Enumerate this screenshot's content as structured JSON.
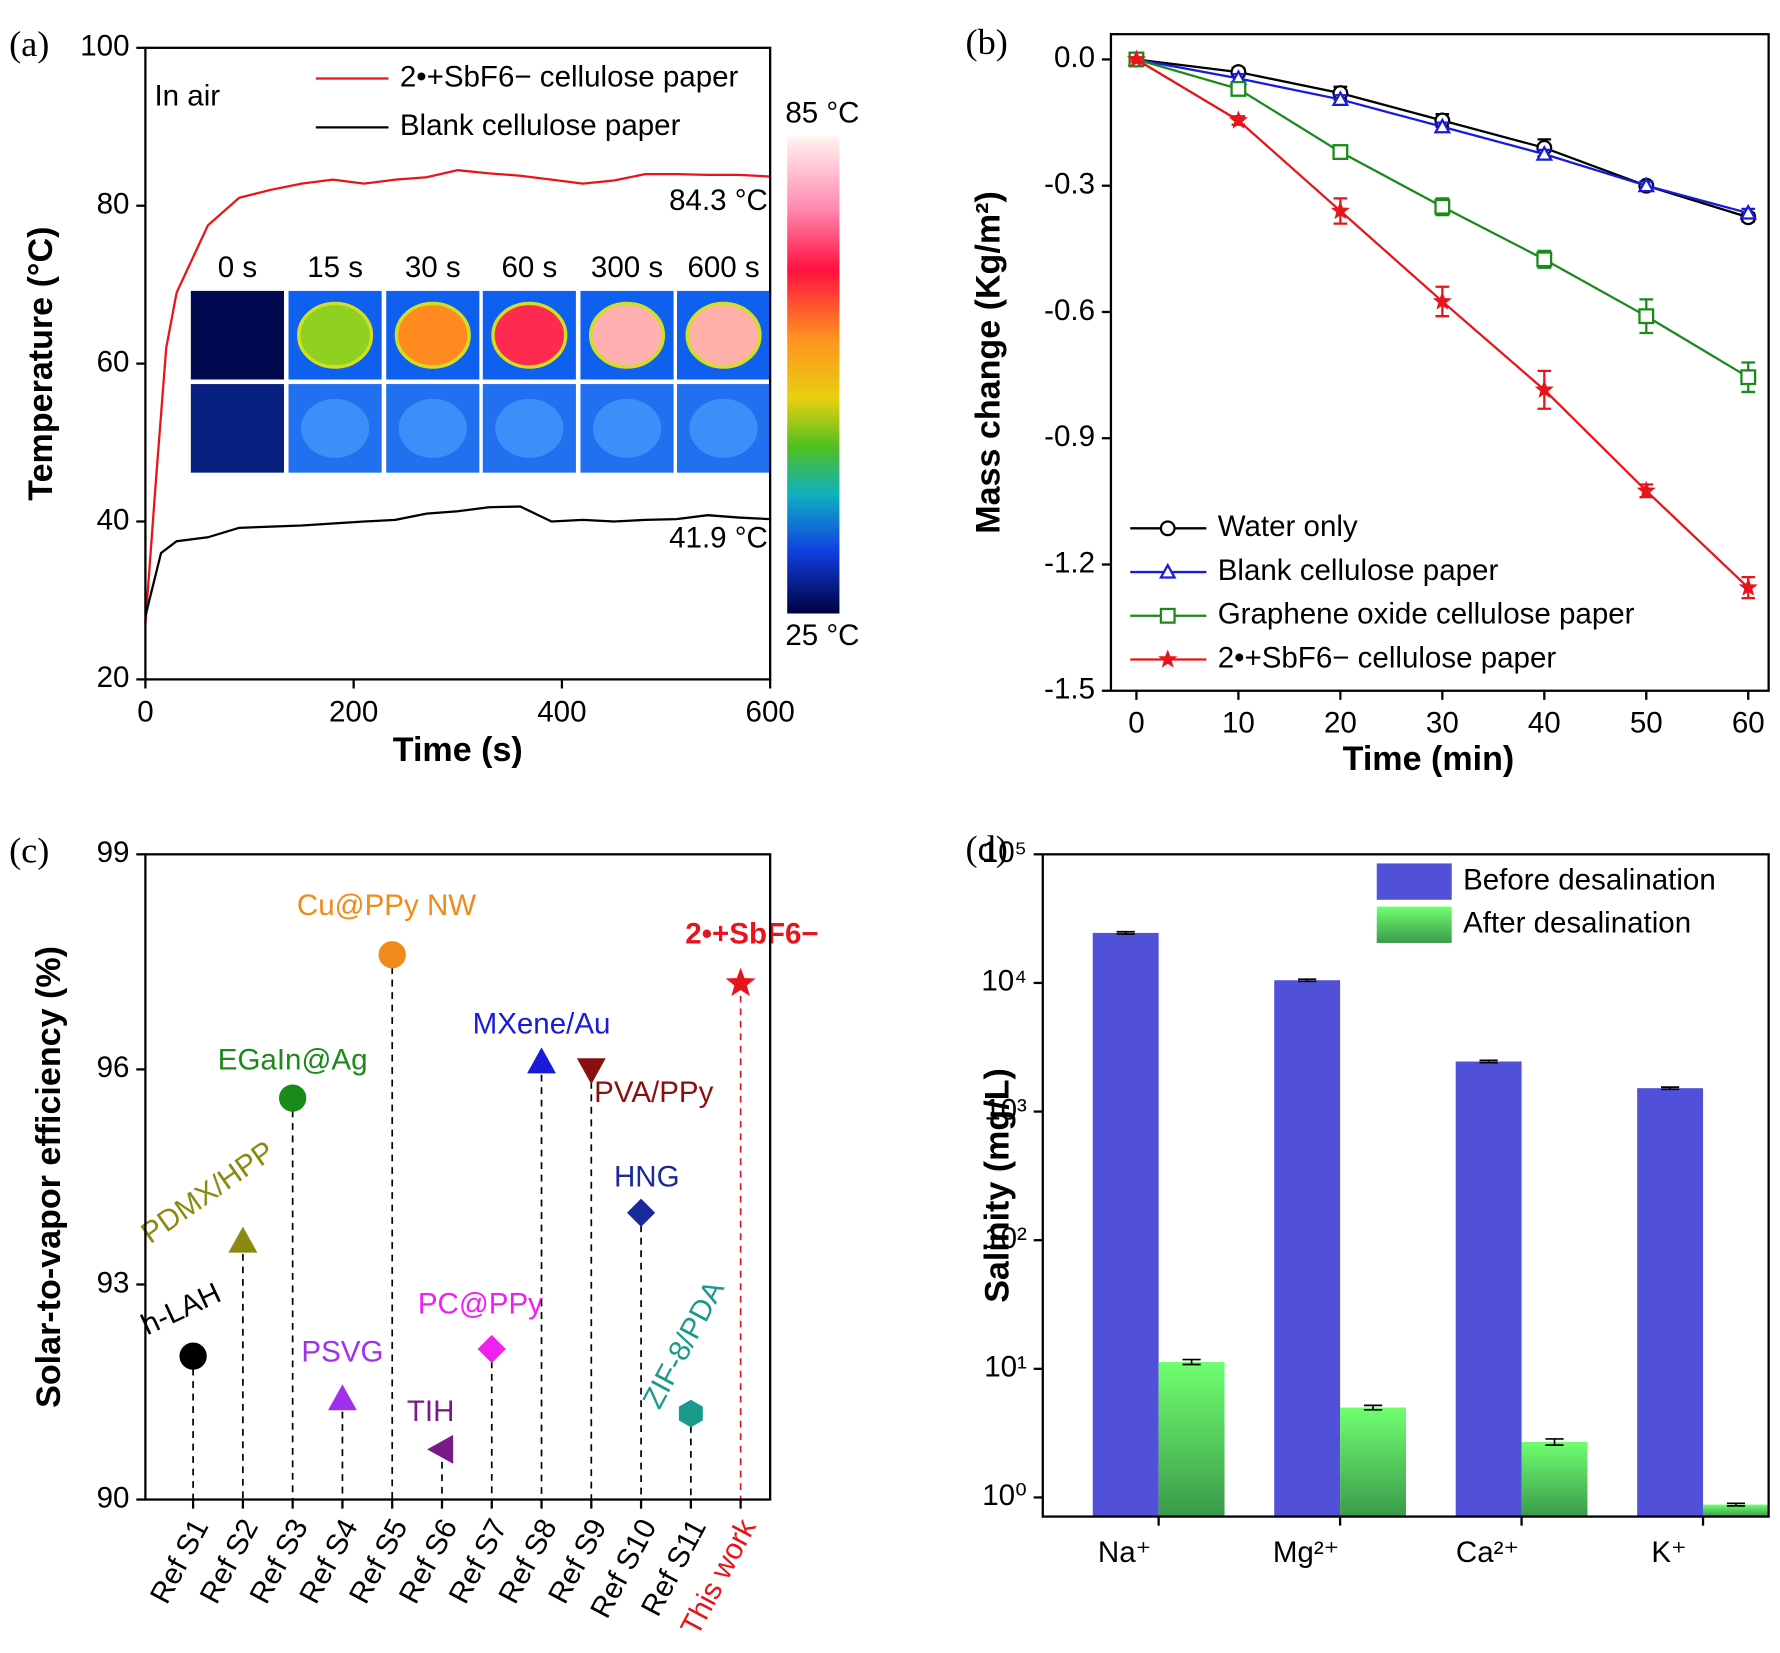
{
  "chart_data": [
    {
      "type": "line",
      "panel_label": "(a)",
      "x_label": "Time (s)",
      "y_label": "Temperature (°C)",
      "xlim": [
        0,
        600
      ],
      "ylim": [
        20,
        100
      ],
      "xticks": [
        0,
        200,
        400,
        600
      ],
      "yticks": [
        20,
        40,
        60,
        80,
        100
      ],
      "legend": "upper right",
      "series": [
        {
          "name": "2•+SbF6− cellulose paper",
          "color": "#e8141c",
          "x": [
            0,
            10,
            20,
            30,
            60,
            90,
            120,
            150,
            180,
            210,
            240,
            270,
            300,
            330,
            360,
            390,
            420,
            450,
            480,
            510,
            540,
            570,
            600
          ],
          "values": [
            27,
            45,
            62,
            69,
            77.5,
            81,
            82,
            82.8,
            83.3,
            82.8,
            83.3,
            83.6,
            84.5,
            84.1,
            83.8,
            83.3,
            82.8,
            83.2,
            84,
            84,
            83.9,
            83.9,
            83.7
          ]
        },
        {
          "name": "Blank cellulose paper",
          "color": "#000000",
          "x": [
            0,
            15,
            30,
            60,
            90,
            150,
            210,
            240,
            270,
            300,
            330,
            360,
            390,
            420,
            450,
            480,
            510,
            540,
            570,
            600
          ],
          "values": [
            28,
            36,
            37.5,
            38,
            39.2,
            39.5,
            40,
            40.2,
            41,
            41.3,
            41.8,
            41.9,
            40,
            40.2,
            40,
            40.2,
            40.3,
            40.8,
            40.5,
            40.3
          ]
        }
      ],
      "annotations": [
        "In air",
        "84.3 °C",
        "41.9 °C"
      ],
      "inset_labels": [
        "0 s",
        "15 s",
        "30 s",
        "60 s",
        "300 s",
        "600 s"
      ],
      "colorbar_labels": [
        "85 °C",
        "25 °C"
      ]
    },
    {
      "type": "line",
      "panel_label": "(b)",
      "x_label": "Time (min)",
      "y_label": "Mass change (Kg/m²)",
      "xlim": [
        -2.5,
        62
      ],
      "ylim": [
        -1.5,
        0.06
      ],
      "xticks": [
        0,
        10,
        20,
        30,
        40,
        50,
        60
      ],
      "yticks": [
        {
          "value": 0,
          "label": "0.0"
        },
        -0.3,
        -0.6,
        -0.9,
        -1.2,
        -1.5
      ],
      "legend": "lower left",
      "x": [
        0,
        10,
        20,
        30,
        40,
        50,
        60
      ],
      "series": [
        {
          "name": "Water only",
          "color": "#000000",
          "marker": "circle",
          "values": [
            0,
            -0.03,
            -0.08,
            -0.145,
            -0.21,
            -0.3,
            -0.375
          ],
          "errors": [
            0.01,
            0.01,
            0.015,
            0.015,
            0.02,
            0.01,
            0.01
          ]
        },
        {
          "name": "Blank cellulose paper",
          "color": "#1a1adb",
          "marker": "triangle",
          "values": [
            0,
            -0.045,
            -0.095,
            -0.16,
            -0.225,
            -0.3,
            -0.365
          ],
          "errors": [
            0.005,
            0.01,
            0.01,
            0.01,
            0.01,
            0.01,
            0.01
          ]
        },
        {
          "name": "Graphene oxide cellulose paper",
          "color": "#1a8a1a",
          "marker": "square",
          "values": [
            0,
            -0.07,
            -0.22,
            -0.35,
            -0.475,
            -0.61,
            -0.755
          ],
          "errors": [
            0.005,
            0.01,
            0.015,
            0.02,
            0.02,
            0.04,
            0.035
          ]
        },
        {
          "name": "2•+SbF6− cellulose paper",
          "color": "#e8141c",
          "marker": "star",
          "values": [
            0,
            -0.145,
            -0.36,
            -0.575,
            -0.785,
            -1.025,
            -1.255
          ],
          "errors": [
            0.005,
            0.01,
            0.03,
            0.035,
            0.045,
            0.015,
            0.025
          ]
        }
      ]
    },
    {
      "type": "scatter",
      "panel_label": "(c)",
      "y_label": "Solar-to-vapor efficiency (%)",
      "ylim": [
        90,
        99
      ],
      "yticks": [
        90,
        93,
        96,
        99
      ],
      "categories": [
        "Ref S1",
        "Ref S2",
        "Ref S3",
        "Ref S4",
        "Ref S5",
        "Ref S6",
        "Ref S7",
        "Ref S8",
        "Ref S9",
        "Ref S10",
        "Ref S11",
        "This work"
      ],
      "values": [
        92.0,
        93.6,
        95.6,
        91.4,
        97.6,
        90.7,
        92.1,
        96.1,
        96.0,
        94.0,
        91.2,
        97.2
      ],
      "point_labels": [
        "h-LAH",
        "PDMX/HPP",
        "EGaIn@Ag",
        "PSVG",
        "Cu@PPy NW",
        "TIH",
        "PC@PPy",
        "MXene/Au",
        "PVA/PPy",
        "HNG",
        "ZIF-8/PDA",
        "2•+SbF6−"
      ],
      "colors": [
        "#000000",
        "#8a8a10",
        "#1a8a1a",
        "#a030f0",
        "#f08a18",
        "#7a1a8a",
        "#f020f0",
        "#1a1adb",
        "#8a1010",
        "#1a2a9a",
        "#1a9a8a",
        "#e8141c"
      ],
      "markers": [
        "circle",
        "triangle",
        "circle",
        "triangle",
        "circle",
        "triangle-left",
        "diamond",
        "triangle",
        "triangle-down",
        "diamond",
        "hexagon",
        "star"
      ],
      "line_colors": [
        "#000000",
        "#000000",
        "#000000",
        "#000000",
        "#000000",
        "#000000",
        "#000000",
        "#000000",
        "#000000",
        "#000000",
        "#000000",
        "#e8141c"
      ]
    },
    {
      "type": "bar",
      "panel_label": "(d)",
      "y_label": "Salinity (mg/L)",
      "log_scale": true,
      "legend": "upper right",
      "ylim": [
        0.71,
        100000
      ],
      "yticks": [
        {
          "value": 1,
          "label": "10⁰"
        },
        {
          "value": 10,
          "label": "10¹"
        },
        {
          "value": 100,
          "label": "10²"
        },
        {
          "value": 1000,
          "label": "10³"
        },
        {
          "value": 10000,
          "label": "10⁴"
        },
        {
          "value": 100000,
          "label": "10⁵"
        }
      ],
      "categories": [
        "Na⁺",
        "Mg²⁺",
        "Ca²⁺",
        "K⁺"
      ],
      "series": [
        {
          "name": "Before desalination",
          "color": "#5050d8",
          "values": [
            24500,
            10500,
            2450,
            1520
          ],
          "errors": [
            500,
            200,
            50,
            30
          ]
        },
        {
          "name": "After desalination",
          "color": "#66f066",
          "values": [
            11.3,
            5.0,
            2.7,
            0.88
          ],
          "errors": [
            0.5,
            0.2,
            0.15,
            0.02
          ]
        }
      ]
    }
  ]
}
